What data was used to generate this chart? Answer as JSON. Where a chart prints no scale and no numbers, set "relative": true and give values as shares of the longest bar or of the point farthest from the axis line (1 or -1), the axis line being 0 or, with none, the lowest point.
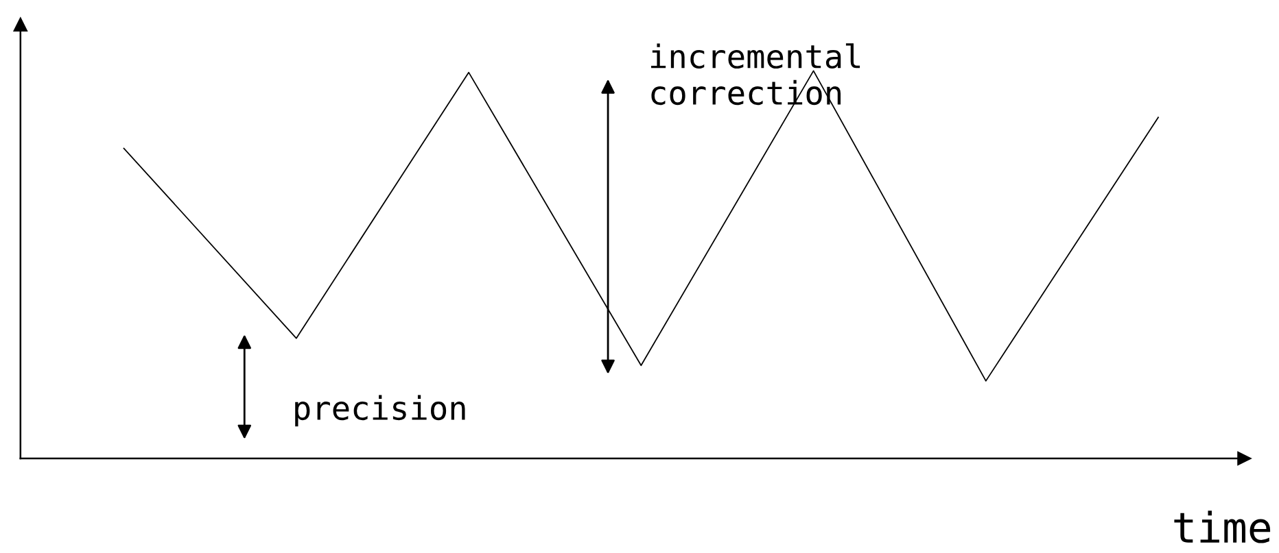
{
  "chart_data": {
    "type": "line",
    "relative": true,
    "xlabel": "time",
    "categories": [
      null,
      null,
      null,
      null,
      null,
      null,
      null
    ],
    "series": [
      {
        "color": "#000000",
        "values": [
          0.8,
          0.31,
          0.996,
          0.24,
          1.0,
          0.2,
          0.88
        ]
      }
    ],
    "annotations": [
      "incremental\ncorrection",
      "precision"
    ],
    "marker": "none",
    "line_style": "solid"
  }
}
